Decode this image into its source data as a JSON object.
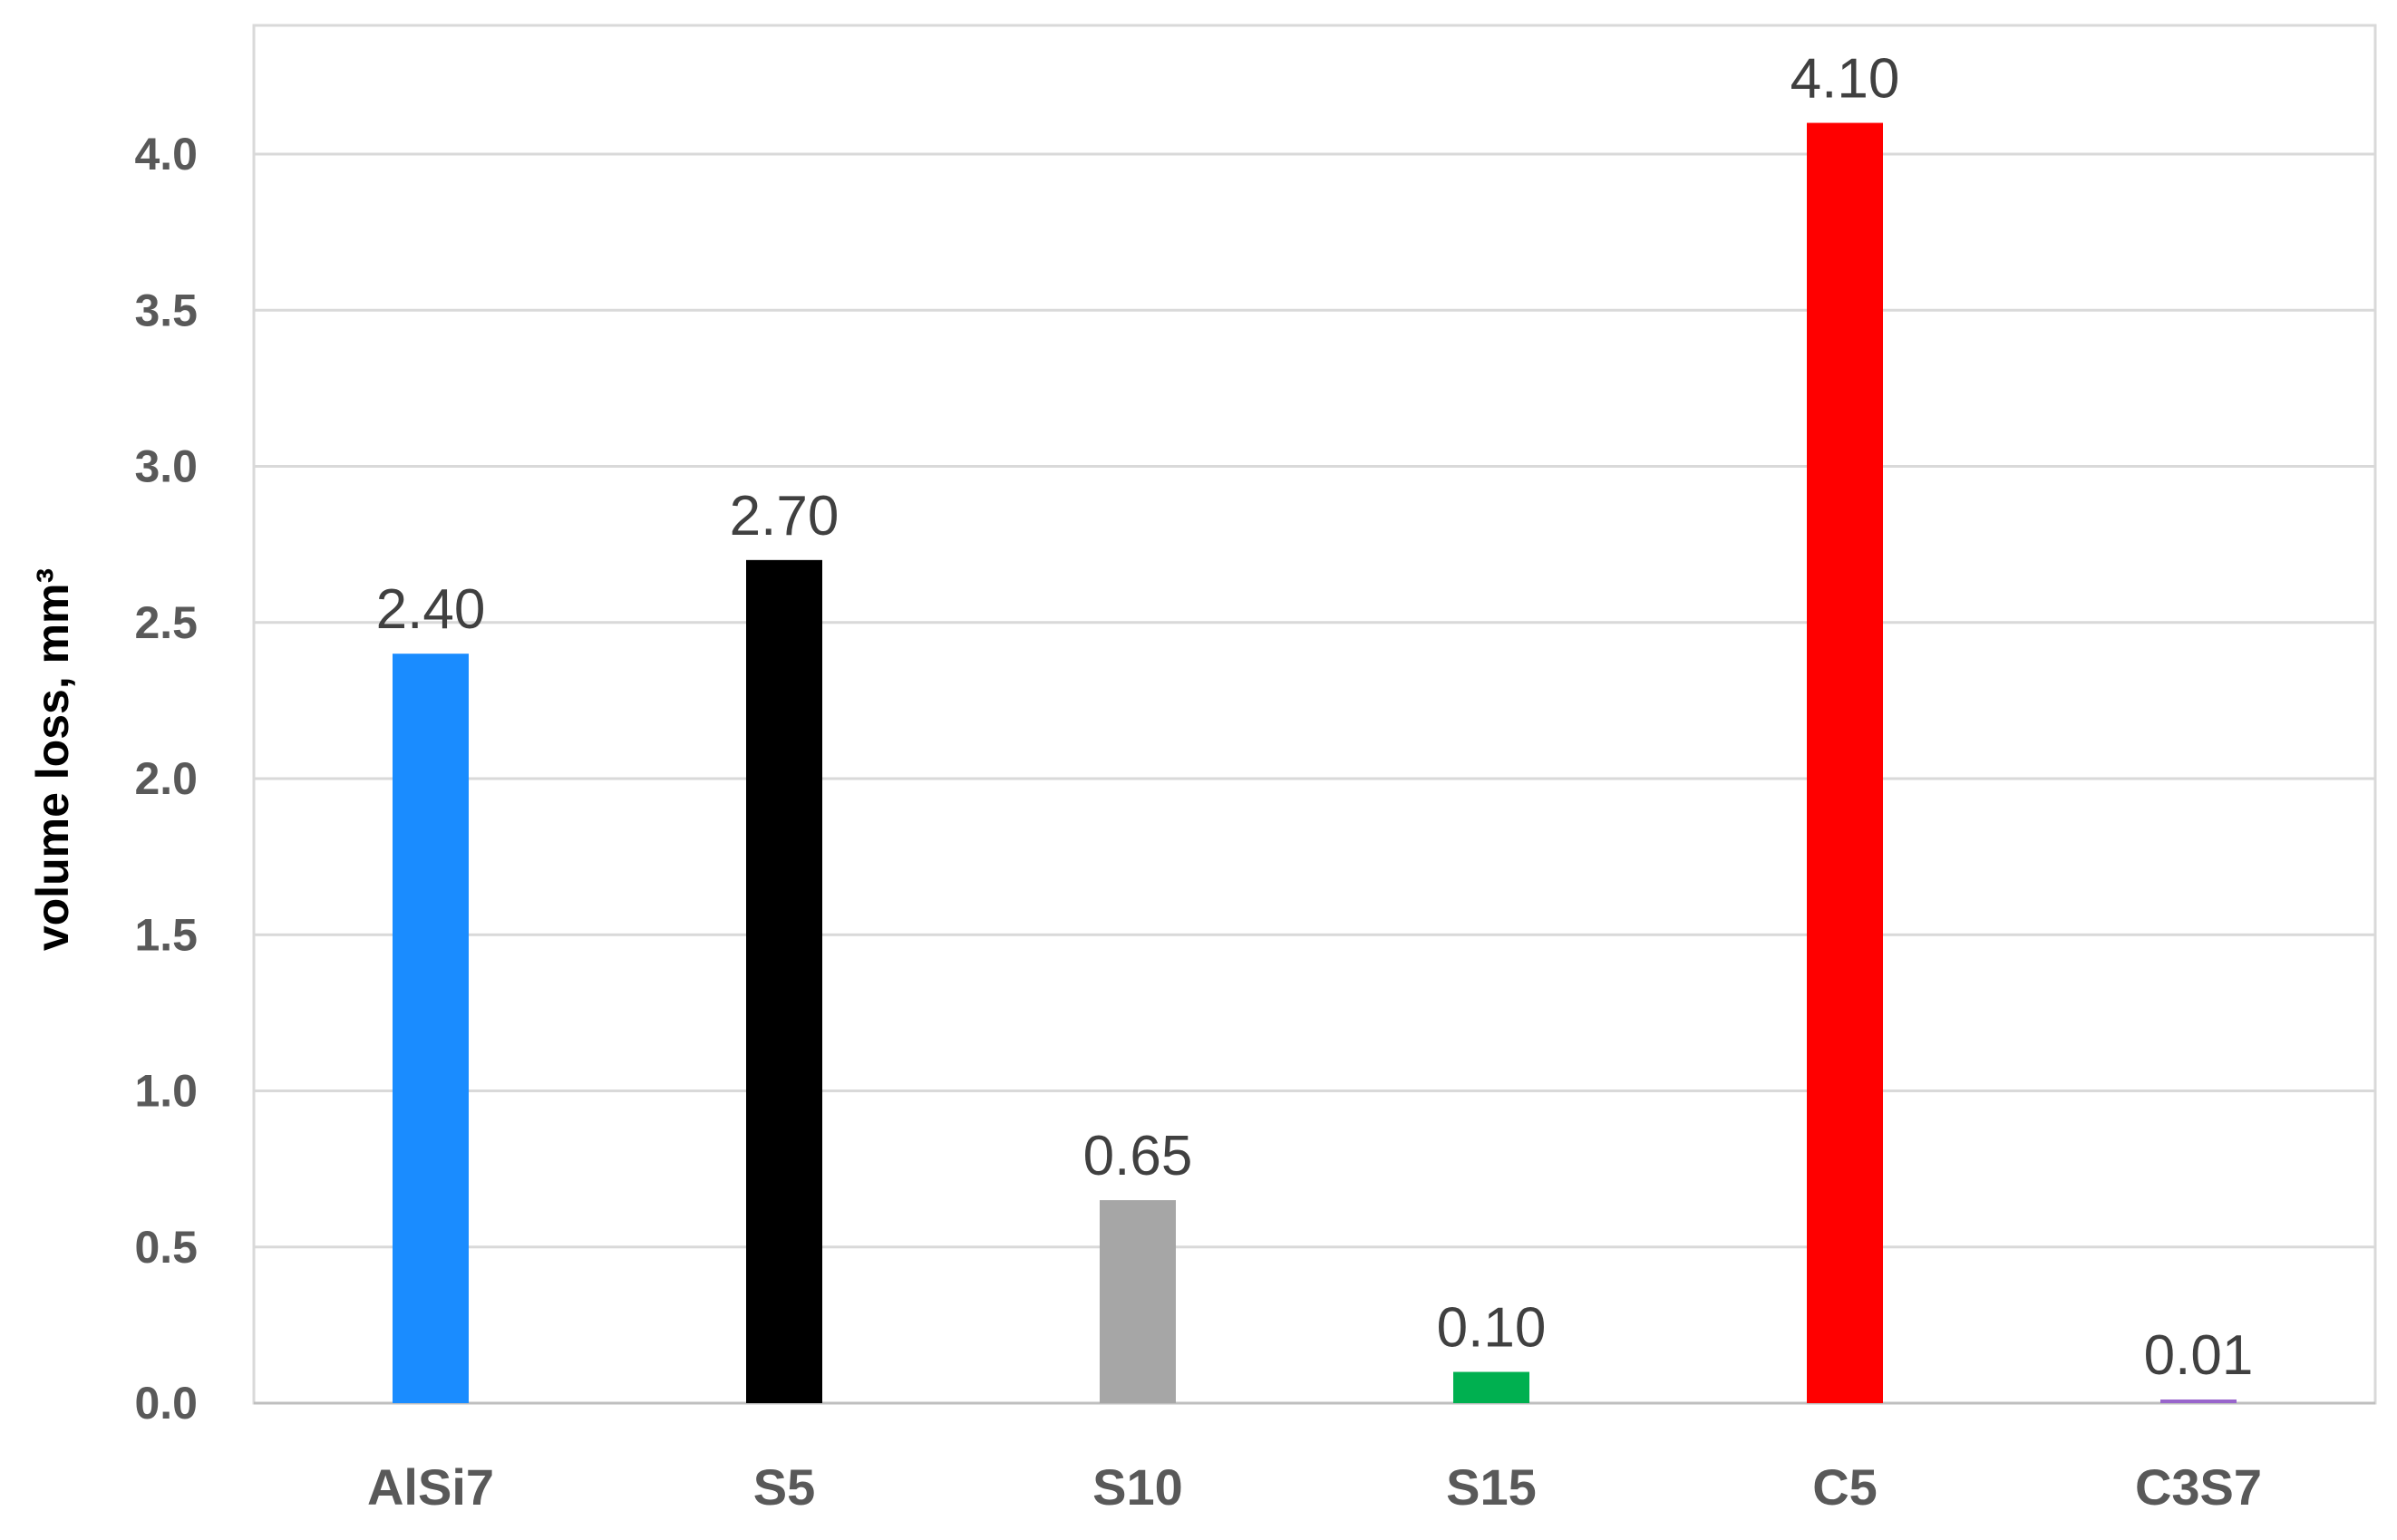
{
  "chart_data": {
    "type": "bar",
    "title": "",
    "xlabel": "",
    "ylabel": "volume loss, mm³",
    "ylim": [
      0,
      4.4
    ],
    "yticks": [
      "0.0",
      "0.5",
      "1.0",
      "1.5",
      "2.0",
      "2.5",
      "3.0",
      "3.5",
      "4.0"
    ],
    "grid": true,
    "legend": "none",
    "categories": [
      "AlSi7",
      "S5",
      "S10",
      "S15",
      "C5",
      "C3S7"
    ],
    "values": [
      2.4,
      2.7,
      0.65,
      0.1,
      4.1,
      0.01
    ],
    "data_labels": [
      "2.40",
      "2.70",
      "0.65",
      "0.10",
      "4.10",
      "0.01"
    ],
    "colors": [
      "#1a8cff",
      "#000000",
      "#a6a6a6",
      "#00b050",
      "#ff0000",
      "#9966cc"
    ]
  }
}
